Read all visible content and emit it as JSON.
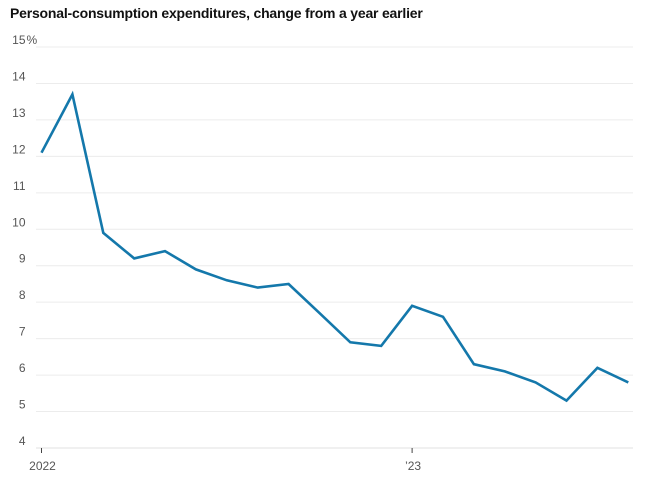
{
  "chart_data": {
    "type": "line",
    "title": "Personal-consumption expenditures, change from a year earlier",
    "series_name": "Personal-consumption expenditures, change from a year earlier",
    "values": [
      12.1,
      13.7,
      9.9,
      9.2,
      9.4,
      8.9,
      8.6,
      8.4,
      8.5,
      7.7,
      6.9,
      6.8,
      7.9,
      7.6,
      6.3,
      6.1,
      5.8,
      5.3,
      6.2,
      5.8
    ],
    "x_ticks": [
      {
        "at": 0,
        "label": "2022"
      },
      {
        "at": 12,
        "label": "’23"
      }
    ],
    "y_ticks": [
      {
        "value": 15,
        "label": "15",
        "suffix": "%"
      },
      {
        "value": 14,
        "label": "14"
      },
      {
        "value": 13,
        "label": "13"
      },
      {
        "value": 12,
        "label": "12"
      },
      {
        "value": 11,
        "label": "11"
      },
      {
        "value": 10,
        "label": "10"
      },
      {
        "value": 9,
        "label": "9"
      },
      {
        "value": 8,
        "label": "8"
      },
      {
        "value": 7,
        "label": "7"
      },
      {
        "value": 6,
        "label": "6"
      },
      {
        "value": 5,
        "label": "5"
      },
      {
        "value": 4,
        "label": "4"
      }
    ],
    "ylim": [
      4,
      15
    ],
    "grid": "horizontal",
    "legend": "none",
    "colors": {
      "line": "#1478ab",
      "grid": "#ececec",
      "baseline": "#e0e0e0",
      "tick_mark": "#444444",
      "axis_label": "#555555",
      "title": "#111111"
    }
  }
}
